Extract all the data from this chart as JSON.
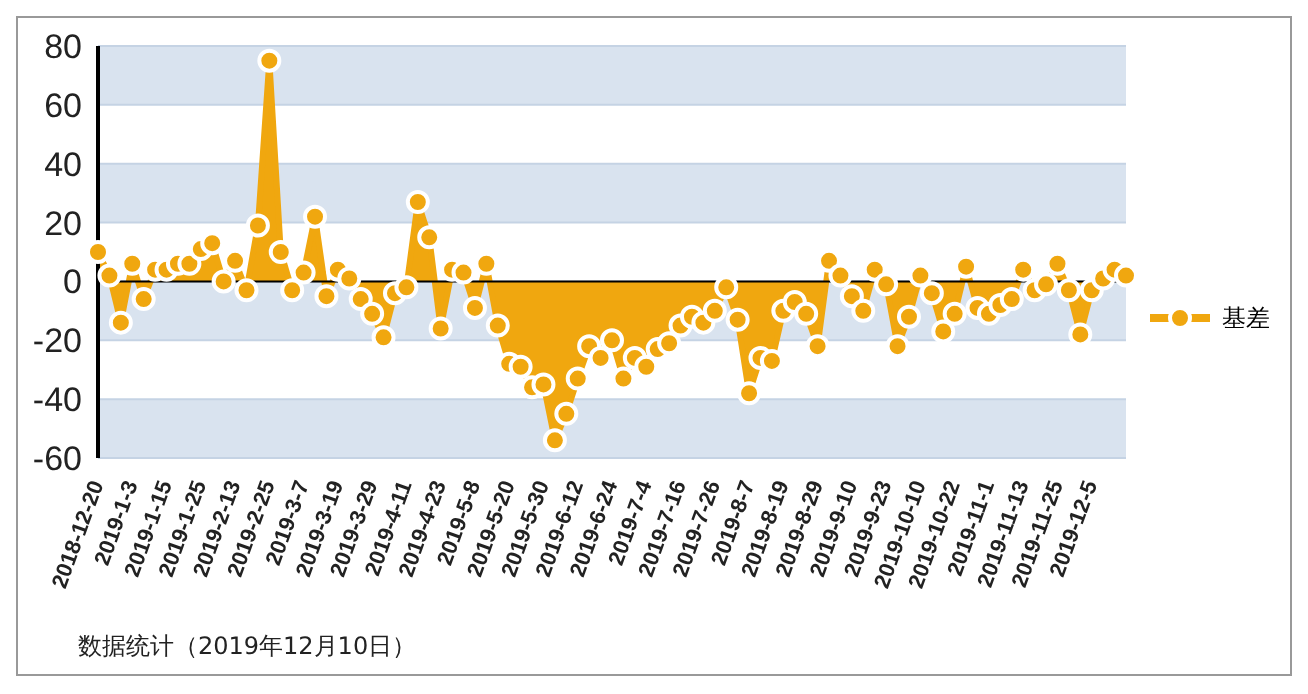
{
  "chart_data": {
    "type": "area",
    "categories": [
      "2018-12-20",
      null,
      null,
      "2019-1-3",
      null,
      null,
      "2019-1-15",
      null,
      null,
      "2019-1-25",
      null,
      null,
      "2019-2-13",
      null,
      null,
      "2019-2-25",
      null,
      null,
      "2019-3-7",
      null,
      null,
      "2019-3-19",
      null,
      null,
      "2019-3-29",
      null,
      null,
      "2019-4-11",
      null,
      null,
      "2019-4-23",
      null,
      null,
      "2019-5-8",
      null,
      null,
      "2019-5-20",
      null,
      null,
      "2019-5-30",
      null,
      null,
      "2019-6-12",
      null,
      null,
      "2019-6-24",
      null,
      null,
      "2019-7-4",
      null,
      null,
      "2019-7-16",
      null,
      null,
      "2019-7-26",
      null,
      null,
      "2019-8-7",
      null,
      null,
      "2019-8-19",
      null,
      null,
      "2019-8-29",
      null,
      null,
      "2019-9-10",
      null,
      null,
      "2019-9-23",
      null,
      null,
      "2019-10-10",
      null,
      null,
      "2019-10-22",
      null,
      null,
      "2019-11-1",
      null,
      null,
      "2019-11-13",
      null,
      null,
      "2019-11-25",
      null,
      null,
      "2019-12-5",
      null,
      null,
      null
    ],
    "series": [
      {
        "name": "基差",
        "color": "#f0a70f",
        "values": [
          10,
          2,
          -14,
          6,
          -6,
          4,
          4,
          6,
          6,
          11,
          13,
          0,
          7,
          -3,
          19,
          75,
          10,
          -3,
          3,
          22,
          -5,
          4,
          1,
          -6,
          -11,
          -19,
          -4,
          -2,
          27,
          15,
          -16,
          4,
          3,
          -9,
          6,
          -15,
          -28,
          -29,
          -36,
          -35,
          -54,
          -45,
          -33,
          -22,
          -26,
          -20,
          -33,
          -26,
          -29,
          -23,
          -21,
          -15,
          -12,
          -14,
          -10,
          -2,
          -13,
          -38,
          -26,
          -27,
          -10,
          -7,
          -11,
          -22,
          7,
          2,
          -5,
          -10,
          4,
          -1,
          -22,
          -12,
          2,
          -4,
          -17,
          -11,
          5,
          -9,
          -11,
          -8,
          -6,
          4,
          -3,
          -1,
          6,
          -3,
          -18,
          -3,
          1,
          4,
          2
        ]
      }
    ],
    "ylim": [
      -60,
      80
    ],
    "yticks": [
      -60,
      -40,
      -20,
      0,
      20,
      40,
      60,
      80
    ],
    "grid": "y",
    "legend": "right",
    "marker": "circle",
    "ref_lines": [
      {
        "axis": "y",
        "value": 0,
        "color": "#000000"
      }
    ],
    "annotations": [
      "数据统计（2019年12月10日）"
    ]
  }
}
